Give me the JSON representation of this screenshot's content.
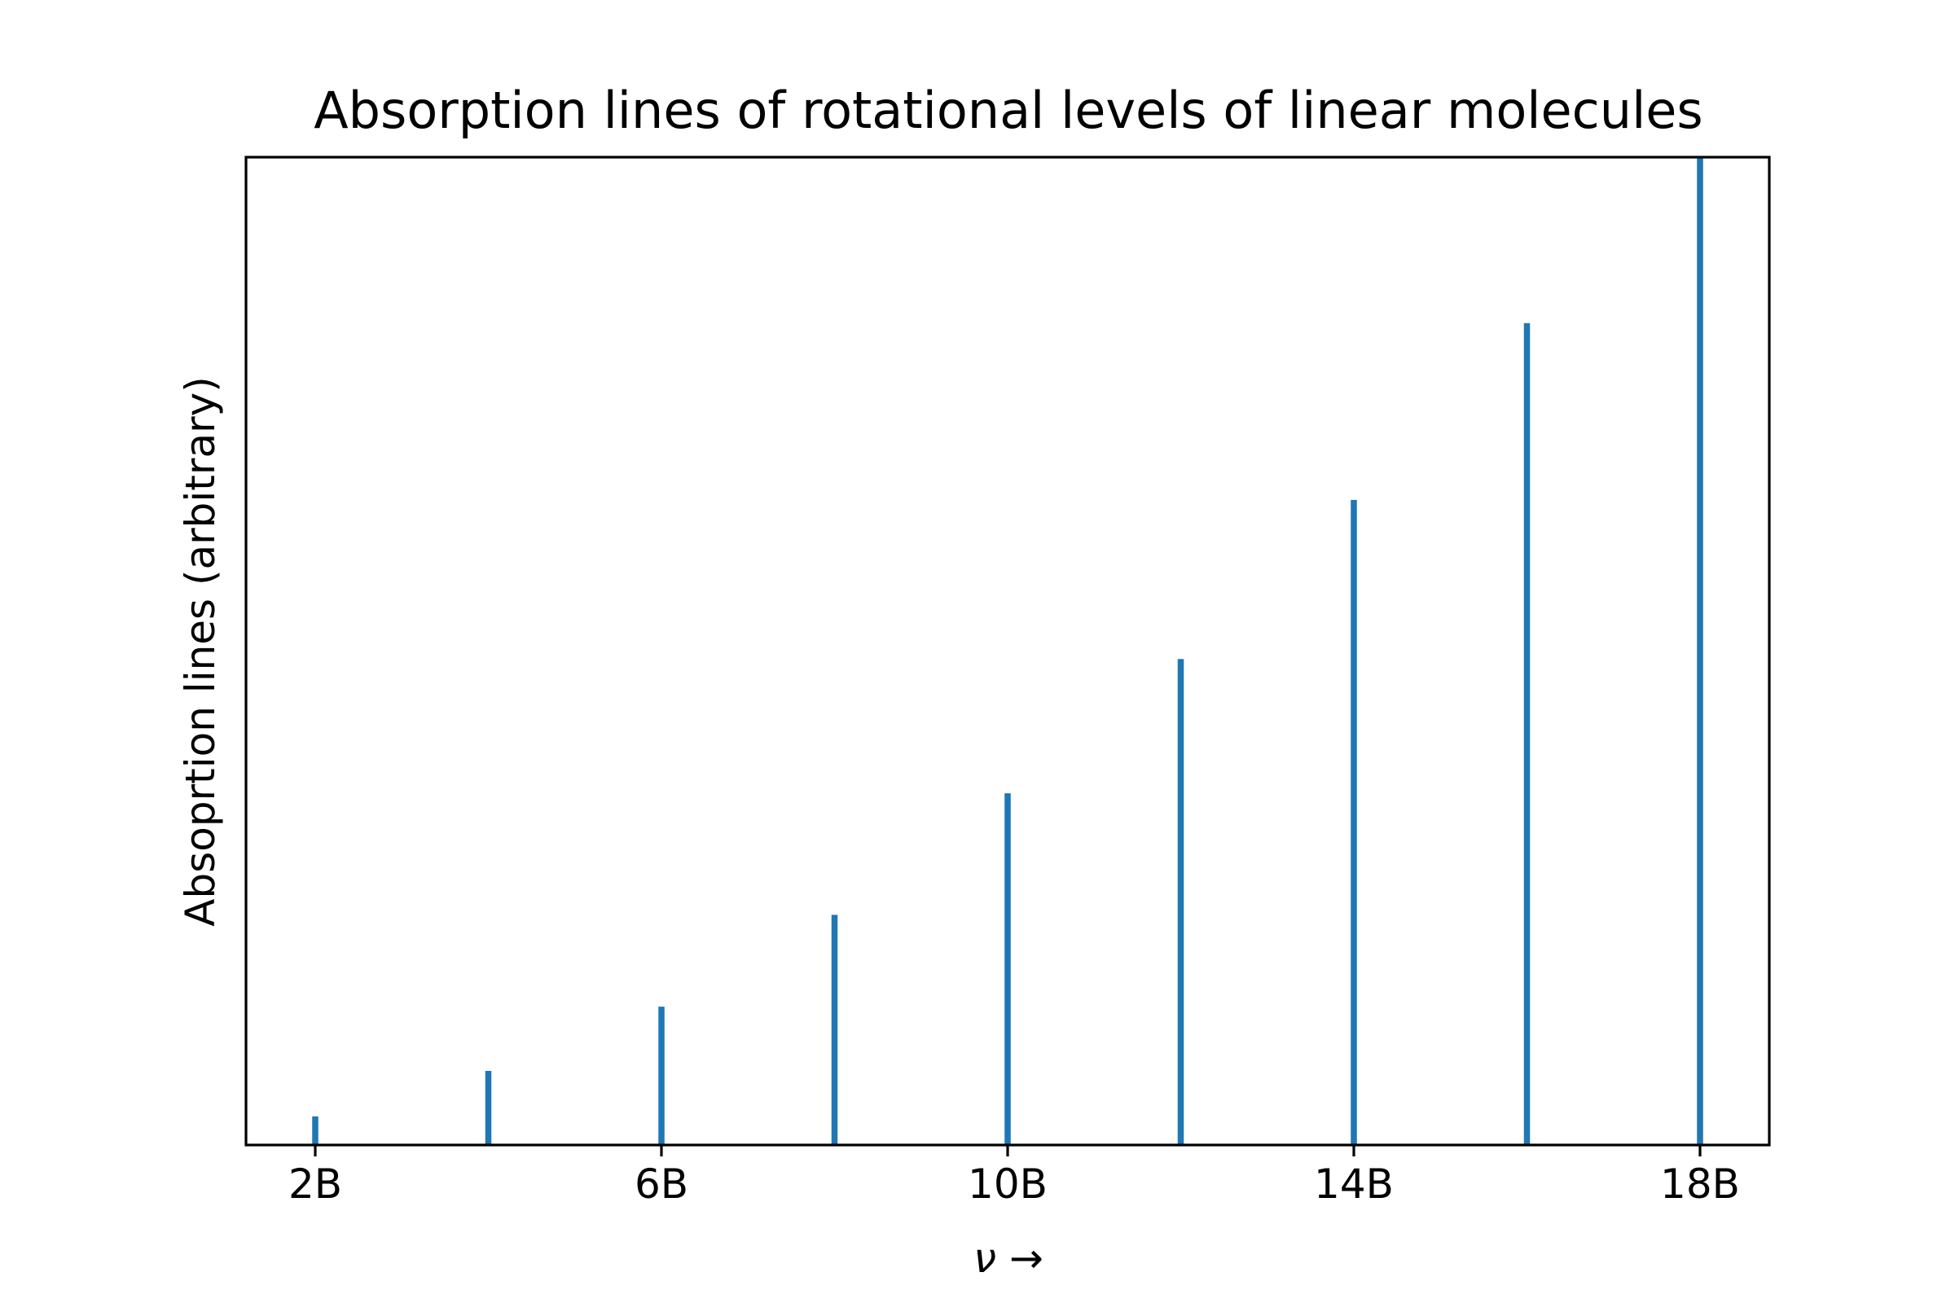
{
  "chart_data": {
    "type": "bar",
    "title": "Absorption lines of rotational levels of linear molecules",
    "xlabel": "ν →",
    "ylabel": "Absoprtion lines (arbitrary)",
    "x": [
      2,
      4,
      6,
      8,
      10,
      12,
      14,
      16,
      18
    ],
    "values": [
      0.029,
      0.075,
      0.14,
      0.233,
      0.356,
      0.492,
      0.653,
      0.832,
      1.0
    ],
    "xticks": [
      2,
      6,
      10,
      14,
      18
    ],
    "xtick_labels": [
      "2B",
      "6B",
      "10B",
      "14B",
      "18B"
    ],
    "xlim": [
      1.2,
      18.8
    ],
    "ylim": [
      0,
      1.0
    ],
    "yticks_shown": false,
    "grid": false,
    "legend": "none",
    "color": "#1f77b4"
  }
}
